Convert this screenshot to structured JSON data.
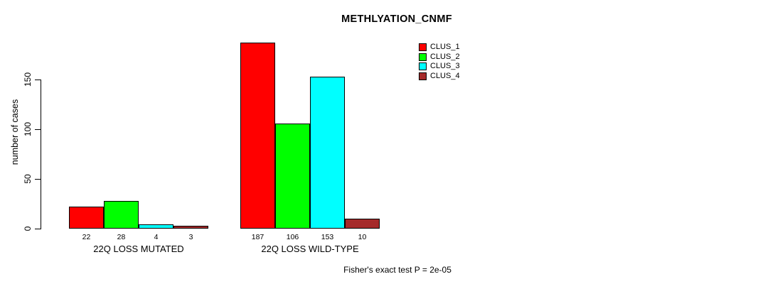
{
  "chart_data": {
    "type": "bar",
    "title": "METHLYATION_CNMF",
    "ylabel": "number of cases",
    "xlabel": "",
    "yticks": [
      0,
      50,
      100,
      150
    ],
    "ylim": [
      0,
      195
    ],
    "grid": false,
    "legend_position": "top-right",
    "categories": [
      "22Q LOSS MUTATED",
      "22Q LOSS WILD-TYPE"
    ],
    "series": [
      {
        "name": "CLUS_1",
        "color": "#FF0000",
        "values": [
          22,
          187
        ]
      },
      {
        "name": "CLUS_2",
        "color": "#00FF00",
        "values": [
          28,
          106
        ]
      },
      {
        "name": "CLUS_3",
        "color": "#00FFFF",
        "values": [
          4,
          153
        ]
      },
      {
        "name": "CLUS_4",
        "color": "#A52A2A",
        "values": [
          3,
          10
        ]
      }
    ],
    "bar_value_labels": [
      [
        "22",
        "28",
        "4",
        "3"
      ],
      [
        "187",
        "106",
        "153",
        "10"
      ]
    ],
    "annotation": "Fisher's exact test P = 2e-05"
  },
  "colors": {
    "background": "#FFFFFF",
    "axis": "#000000",
    "text": "#000000"
  }
}
